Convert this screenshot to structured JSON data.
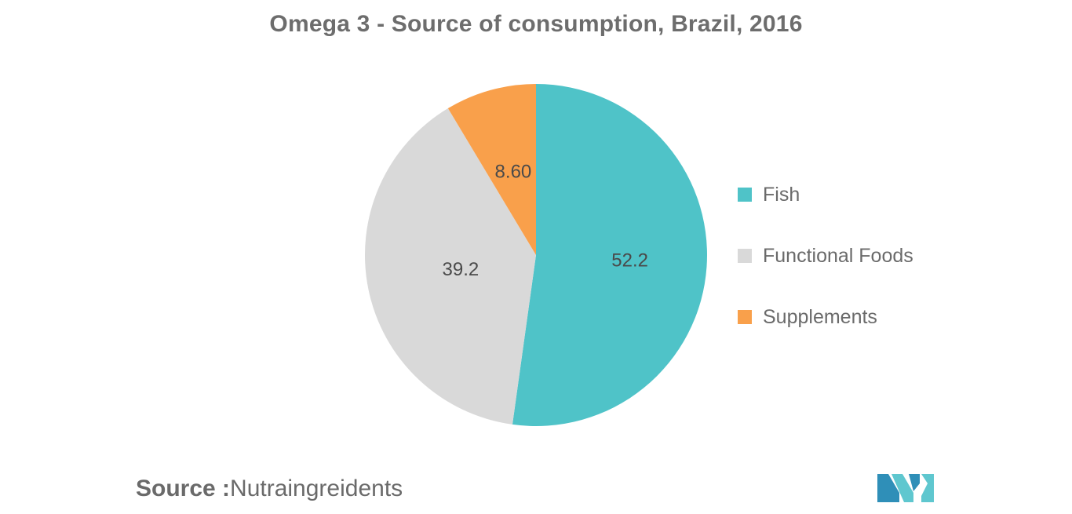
{
  "chart_data": {
    "type": "pie",
    "title": "Omega 3 - Source of consumption, Brazil, 2016",
    "slices": [
      {
        "label": "Fish",
        "value": 52.2,
        "display": "52.2",
        "color": "#4fc3c8"
      },
      {
        "label": "Functional Foods",
        "value": 39.2,
        "display": "39.2",
        "color": "#d9d9d9"
      },
      {
        "label": "Supplements",
        "value": 8.6,
        "display": "8.60",
        "color": "#f9a04b"
      }
    ],
    "start_angle_deg": 0,
    "direction": "clockwise",
    "legend_position": "right"
  },
  "source": {
    "prefix": "Source :",
    "text": "Nutraingreidents"
  },
  "logo": {
    "colors": [
      "#2f8fb8",
      "#5fc7cf"
    ]
  }
}
